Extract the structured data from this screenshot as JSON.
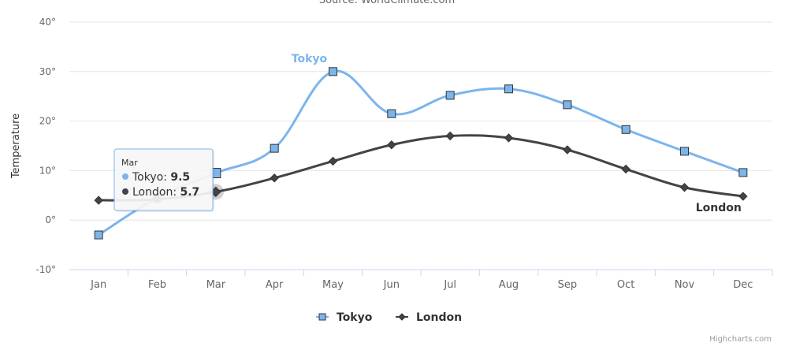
{
  "chart_data": {
    "type": "line",
    "subtitle": "Source: WorldClimate.com",
    "ylabel": "Temperature",
    "ylim": [
      -10,
      40
    ],
    "yticks": [
      -10,
      0,
      10,
      20,
      30,
      40
    ],
    "y_tick_suffix": "°",
    "categories": [
      "Jan",
      "Feb",
      "Mar",
      "Apr",
      "May",
      "Jun",
      "Jul",
      "Aug",
      "Sep",
      "Oct",
      "Nov",
      "Dec"
    ],
    "series": [
      {
        "name": "Tokyo",
        "color": "#7cb5ec",
        "marker": "square",
        "values": [
          -3.0,
          4.5,
          9.5,
          14.5,
          30.0,
          21.5,
          25.2,
          26.5,
          23.3,
          18.3,
          13.9,
          9.6
        ]
      },
      {
        "name": "London",
        "color": "#434348",
        "marker": "diamond",
        "values": [
          4.0,
          4.2,
          5.7,
          8.5,
          11.9,
          15.2,
          17.0,
          16.6,
          14.2,
          10.3,
          6.6,
          4.8
        ]
      }
    ],
    "grid": true,
    "legend": "bottom-center",
    "tooltip": {
      "title": "Mar",
      "rows": [
        {
          "name": "Tokyo",
          "value": "9.5",
          "color": "#7cb5ec"
        },
        {
          "name": "London",
          "value": "5.7",
          "color": "#434348"
        }
      ]
    }
  },
  "credits": "Highcharts.com"
}
